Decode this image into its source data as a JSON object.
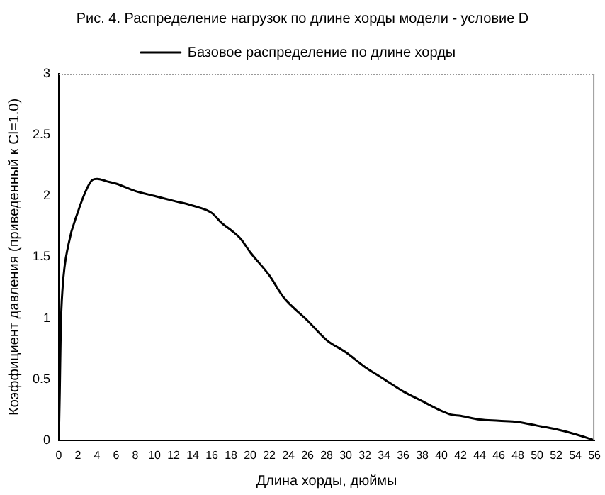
{
  "chart_data": {
    "type": "line",
    "title": "Рис. 4. Распределение нагрузок по длине хорды модели - условие D",
    "xlabel": "Длина хорды, дюймы",
    "ylabel": "Коэффициент давления (приведенный к Cl=1.0)",
    "x": [
      0,
      0.1,
      0.2,
      0.4,
      1,
      2,
      3,
      3.5,
      4,
      5,
      6,
      8,
      10,
      12,
      14,
      16,
      17,
      18,
      19,
      20,
      22,
      23.5,
      26,
      28,
      30,
      32,
      34,
      36,
      38,
      40,
      41,
      42,
      44,
      46,
      48,
      50,
      52,
      54,
      56
    ],
    "series": [
      {
        "name": "Базовое распределение по длине хорды",
        "color": "#000000",
        "values": [
          0,
          0.4,
          0.9,
          1.25,
          1.6,
          1.87,
          2.07,
          2.13,
          2.14,
          2.12,
          2.1,
          2.04,
          2.0,
          1.96,
          1.92,
          1.86,
          1.78,
          1.72,
          1.65,
          1.54,
          1.35,
          1.17,
          0.98,
          0.82,
          0.72,
          0.6,
          0.5,
          0.4,
          0.32,
          0.24,
          0.21,
          0.2,
          0.17,
          0.16,
          0.15,
          0.12,
          0.09,
          0.05,
          0
        ]
      }
    ],
    "xlim": [
      0,
      56
    ],
    "xticks": [
      0,
      2,
      4,
      6,
      8,
      10,
      12,
      14,
      16,
      18,
      20,
      22,
      24,
      26,
      28,
      30,
      32,
      34,
      36,
      38,
      40,
      42,
      44,
      46,
      48,
      50,
      52,
      54,
      56
    ],
    "ylim": [
      0,
      3
    ],
    "yticks": [
      0,
      0.5,
      1,
      1.5,
      2,
      2.5,
      3
    ],
    "legend": "top",
    "marker": "none",
    "line_style": "solid"
  }
}
